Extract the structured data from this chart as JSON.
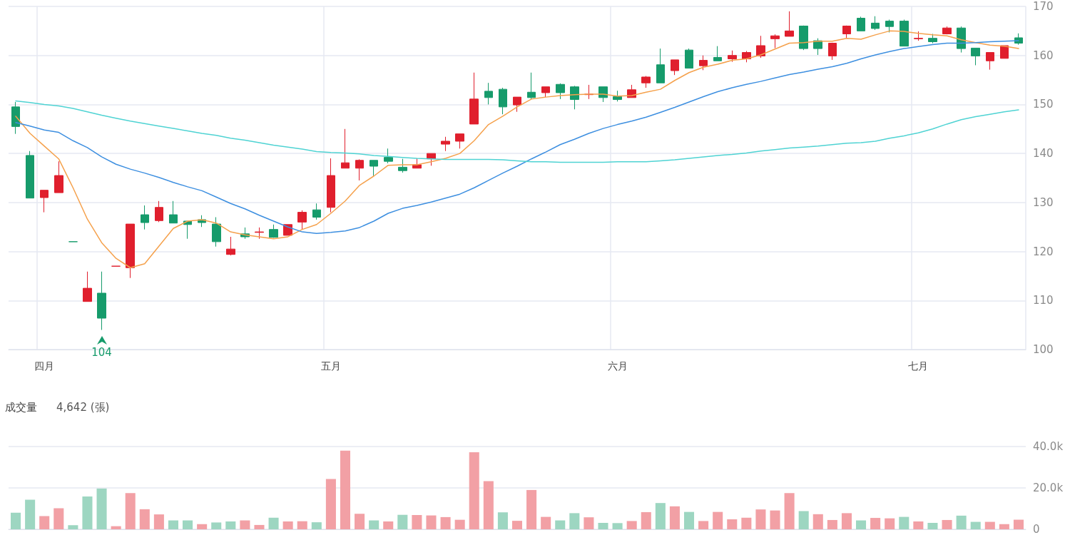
{
  "chart_data": [
    {
      "type": "candlestick",
      "categories": [
        null,
        null,
        "四月",
        null,
        null,
        null,
        null,
        null,
        null,
        null,
        null,
        null,
        null,
        null,
        null,
        null,
        null,
        null,
        null,
        null,
        null,
        null,
        "五月",
        null,
        null,
        null,
        null,
        null,
        null,
        null,
        null,
        null,
        null,
        null,
        null,
        null,
        null,
        null,
        null,
        null,
        null,
        null,
        "六月",
        null,
        null,
        null,
        null,
        null,
        null,
        null,
        null,
        null,
        null,
        null,
        null,
        null,
        null,
        null,
        null,
        null,
        null,
        null,
        null,
        "七月",
        null,
        null,
        null,
        null,
        null,
        null,
        null
      ],
      "ohlc": [
        [
          149.5,
          150.5,
          144,
          145.5
        ],
        [
          139.6,
          140.5,
          130.9,
          130.9
        ],
        [
          131,
          132.5,
          128,
          132.5
        ],
        [
          132,
          138.4,
          132,
          135.5
        ],
        [
          122,
          122,
          122,
          122
        ],
        [
          109.8,
          115.9,
          109.8,
          112.5
        ],
        [
          111.5,
          115.9,
          104,
          106.4
        ],
        [
          117,
          117,
          117,
          117
        ],
        [
          116.7,
          125.6,
          114.6,
          125.6
        ],
        [
          127.5,
          129.4,
          124.5,
          125.9
        ],
        [
          126.3,
          130.3,
          126,
          129
        ],
        [
          127.5,
          130.3,
          125.8,
          125.8
        ],
        [
          126.2,
          126.2,
          122.6,
          125.5
        ],
        [
          126.5,
          127.4,
          125,
          125.9
        ],
        [
          125.6,
          127,
          121,
          122
        ],
        [
          119.4,
          123,
          119.2,
          120.5
        ],
        [
          123.6,
          124.9,
          122.6,
          123
        ],
        [
          123.9,
          124.9,
          122.6,
          124
        ],
        [
          124.5,
          125.5,
          122.8,
          122.9
        ],
        [
          123.3,
          125.5,
          123.3,
          125.5
        ],
        [
          126,
          128.4,
          124.5,
          128
        ],
        [
          128.5,
          129.8,
          126.5,
          127
        ],
        [
          129,
          139,
          128,
          135.5
        ],
        [
          137,
          145,
          137,
          138.1
        ],
        [
          137,
          138.8,
          134.5,
          138.6
        ],
        [
          138.6,
          138.6,
          135.4,
          137.4
        ],
        [
          139.2,
          141,
          138,
          138.4
        ],
        [
          137.2,
          138.9,
          136.1,
          136.5
        ],
        [
          137,
          139,
          137,
          137.7
        ],
        [
          138.9,
          140,
          137.5,
          140
        ],
        [
          141.9,
          143.4,
          140.5,
          142.5
        ],
        [
          142.5,
          144,
          141,
          144
        ],
        [
          146,
          156.5,
          146,
          151.1
        ],
        [
          152.7,
          154.4,
          150,
          151.4
        ],
        [
          153.1,
          153.4,
          148,
          149.5
        ],
        [
          149.9,
          151.5,
          148.5,
          151.5
        ],
        [
          152.5,
          156.5,
          151,
          151.4
        ],
        [
          152.4,
          153.6,
          151.5,
          153.6
        ],
        [
          154.1,
          154.3,
          151.1,
          152.4
        ],
        [
          153.6,
          153.8,
          149,
          151
        ],
        [
          152,
          154,
          151.1,
          152.1
        ],
        [
          153.6,
          153.6,
          150.5,
          151.4
        ],
        [
          151.6,
          152.8,
          150.6,
          151
        ],
        [
          151.4,
          154,
          151.4,
          153
        ],
        [
          154.4,
          155.8,
          153.4,
          155.6
        ],
        [
          158.1,
          161.4,
          154.4,
          154.4
        ],
        [
          156.9,
          159.1,
          156,
          159.1
        ],
        [
          161.1,
          161.4,
          157.4,
          157.4
        ],
        [
          157.9,
          160,
          157,
          159
        ],
        [
          159.6,
          161.9,
          158.9,
          158.9
        ],
        [
          159.3,
          161,
          158.7,
          160
        ],
        [
          159.3,
          160.9,
          158.6,
          160.6
        ],
        [
          159.9,
          164,
          159.5,
          162
        ],
        [
          163.4,
          164.3,
          161.5,
          164
        ],
        [
          163.9,
          169,
          163.9,
          165
        ],
        [
          166,
          166.1,
          161.1,
          161.4
        ],
        [
          163,
          163.5,
          160.1,
          161.4
        ],
        [
          159.9,
          162.6,
          159.1,
          162.5
        ],
        [
          164.4,
          166.1,
          163.6,
          166
        ],
        [
          167.6,
          167.9,
          165,
          165
        ],
        [
          166.6,
          168,
          165.2,
          165.5
        ],
        [
          167,
          167.3,
          164.7,
          165.9
        ],
        [
          167,
          167.3,
          161.9,
          161.9
        ],
        [
          163.4,
          164.9,
          163,
          163.5
        ],
        [
          163.5,
          164.4,
          162.5,
          162.8
        ],
        [
          164.4,
          165.9,
          164.3,
          165.6
        ],
        [
          165.6,
          165.9,
          160.6,
          161.4
        ],
        [
          161.5,
          161.5,
          158,
          159.9
        ],
        [
          158.9,
          160.6,
          157.1,
          160.6
        ],
        [
          159.4,
          162,
          159.4,
          162
        ],
        [
          163.6,
          164.5,
          162.2,
          162.5
        ]
      ],
      "colors": [
        "#169b6b",
        "#169b6b",
        "#e01f2d",
        "#e01f2d",
        "#169b6b",
        "#e01f2d",
        "#169b6b",
        "#e01f2d",
        "#e01f2d",
        "#169b6b",
        "#e01f2d",
        "#169b6b",
        "#169b6b",
        "#169b6b",
        "#169b6b",
        "#e01f2d",
        "#169b6b",
        "#e01f2d",
        "#169b6b",
        "#e01f2d",
        "#e01f2d",
        "#169b6b",
        "#e01f2d",
        "#e01f2d",
        "#e01f2d",
        "#169b6b",
        "#169b6b",
        "#169b6b",
        "#e01f2d",
        "#e01f2d",
        "#e01f2d",
        "#e01f2d",
        "#e01f2d",
        "#169b6b",
        "#169b6b",
        "#e01f2d",
        "#169b6b",
        "#e01f2d",
        "#169b6b",
        "#169b6b",
        "#e01f2d",
        "#169b6b",
        "#169b6b",
        "#e01f2d",
        "#e01f2d",
        "#169b6b",
        "#e01f2d",
        "#169b6b",
        "#e01f2d",
        "#169b6b",
        "#e01f2d",
        "#e01f2d",
        "#e01f2d",
        "#e01f2d",
        "#e01f2d",
        "#169b6b",
        "#169b6b",
        "#e01f2d",
        "#e01f2d",
        "#169b6b",
        "#169b6b",
        "#169b6b",
        "#169b6b",
        "#e01f2d",
        "#169b6b",
        "#e01f2d",
        "#169b6b",
        "#169b6b",
        "#e01f2d",
        "#e01f2d",
        "#169b6b"
      ],
      "series": [
        {
          "type": "line",
          "color": "#f5a14c",
          "values": [
            147.6,
            144.1,
            141.5,
            138.9,
            133,
            126.6,
            121.8,
            118.6,
            116.7,
            117.5,
            121.1,
            124.7,
            126.2,
            126.5,
            125.8,
            124,
            123.4,
            123,
            122.6,
            123,
            124.5,
            125.5,
            127.8,
            130.3,
            133.5,
            135.4,
            137.6,
            137.7,
            137.7,
            138.3,
            139,
            140,
            142.6,
            145.9,
            147.6,
            149.5,
            151.1,
            151.5,
            151.8,
            152,
            152.1,
            152.1,
            151.7,
            151.8,
            152.5,
            153.1,
            154.9,
            156.5,
            157.6,
            158.2,
            159,
            159.3,
            160.1,
            161.3,
            162.5,
            162.6,
            162.9,
            162.9,
            163.5,
            163.3,
            164.2,
            165,
            164.9,
            164.5,
            164.2,
            164,
            163.2,
            162.6,
            162.1,
            161.9,
            161.4
          ]
        },
        {
          "type": "line",
          "color": "#3d8fe0",
          "values": [
            146.3,
            145.6,
            144.8,
            144.3,
            142.6,
            141.2,
            139.3,
            137.8,
            136.8,
            136,
            135.1,
            134.1,
            133.2,
            132.4,
            131.1,
            129.8,
            128.7,
            127.4,
            126.2,
            125,
            124,
            123.7,
            123.9,
            124.2,
            124.9,
            126.2,
            127.8,
            128.8,
            129.4,
            130.1,
            130.9,
            131.7,
            133,
            134.5,
            136,
            137.4,
            138.9,
            140.3,
            141.8,
            142.9,
            144.1,
            145.1,
            145.9,
            146.6,
            147.4,
            148.4,
            149.4,
            150.5,
            151.6,
            152.6,
            153.4,
            154.1,
            154.7,
            155.4,
            156.1,
            156.6,
            157.2,
            157.7,
            158.4,
            159.3,
            160.1,
            160.8,
            161.4,
            161.8,
            162.2,
            162.5,
            162.5,
            162.6,
            162.8,
            162.9,
            163
          ]
        },
        {
          "type": "line",
          "color": "#4fd3d3",
          "values": [
            150.7,
            150.4,
            150,
            149.7,
            149.2,
            148.5,
            147.8,
            147.2,
            146.6,
            146.1,
            145.6,
            145.1,
            144.6,
            144.1,
            143.7,
            143.1,
            142.7,
            142.2,
            141.7,
            141.3,
            140.9,
            140.4,
            140.2,
            140.1,
            139.9,
            139.6,
            139.4,
            139.2,
            139,
            138.9,
            138.8,
            138.8,
            138.8,
            138.8,
            138.7,
            138.5,
            138.3,
            138.3,
            138.2,
            138.2,
            138.2,
            138.2,
            138.3,
            138.3,
            138.3,
            138.5,
            138.7,
            139,
            139.3,
            139.6,
            139.8,
            140.1,
            140.5,
            140.8,
            141.1,
            141.3,
            141.5,
            141.8,
            142.1,
            142.2,
            142.5,
            143.1,
            143.6,
            144.2,
            145,
            146,
            146.9,
            147.5,
            148,
            148.5,
            148.9
          ]
        }
      ],
      "annotations": [
        {
          "text": "104",
          "y": 104
        }
      ],
      "ylim": [
        100,
        170
      ],
      "yticks": [
        100,
        110,
        120,
        130,
        140,
        150,
        160,
        170
      ],
      "grid": true,
      "marker": "none",
      "line_style": "solid"
    },
    {
      "type": "bar",
      "title": "成交量",
      "subtitle": "4,642 (張)",
      "categories": [
        null,
        null,
        null,
        null,
        null,
        null,
        null,
        null,
        null,
        null,
        null,
        null,
        null,
        null,
        null,
        null,
        null,
        null,
        null,
        null,
        null,
        null,
        null,
        null,
        null,
        null,
        null,
        null,
        null,
        null,
        null,
        null,
        null,
        null,
        null,
        null,
        null,
        null,
        null,
        null,
        null,
        null,
        null,
        null,
        null,
        null,
        null,
        null,
        null,
        null,
        null,
        null,
        null,
        null,
        null,
        null,
        null,
        null,
        null,
        null,
        null,
        null,
        null,
        null,
        null,
        null,
        null,
        null,
        null,
        null,
        null
      ],
      "values": [
        8000,
        14300,
        6400,
        10200,
        2000,
        15900,
        19700,
        1500,
        17500,
        9700,
        7200,
        4300,
        4300,
        2500,
        3300,
        3800,
        4300,
        2100,
        5600,
        3800,
        3900,
        3400,
        24300,
        38000,
        7500,
        4300,
        3800,
        7000,
        6900,
        6700,
        5900,
        4600,
        37200,
        23300,
        8200,
        4100,
        19000,
        6000,
        4300,
        7800,
        5800,
        3100,
        3000,
        4000,
        8300,
        12700,
        11100,
        8400,
        4000,
        8400,
        4800,
        5600,
        9600,
        9100,
        17500,
        8800,
        7300,
        4500,
        7800,
        4300,
        5500,
        5300,
        6000,
        3800,
        3100,
        4500,
        6600,
        3600,
        3600,
        2500,
        4642
      ],
      "colors": [
        "#9dd6c1",
        "#9dd6c1",
        "#f2a0a5",
        "#f2a0a5",
        "#9dd6c1",
        "#9dd6c1",
        "#9dd6c1",
        "#f2a0a5",
        "#f2a0a5",
        "#f2a0a5",
        "#f2a0a5",
        "#9dd6c1",
        "#9dd6c1",
        "#f2a0a5",
        "#9dd6c1",
        "#9dd6c1",
        "#f2a0a5",
        "#f2a0a5",
        "#9dd6c1",
        "#f2a0a5",
        "#f2a0a5",
        "#9dd6c1",
        "#f2a0a5",
        "#f2a0a5",
        "#f2a0a5",
        "#9dd6c1",
        "#f2a0a5",
        "#9dd6c1",
        "#f2a0a5",
        "#f2a0a5",
        "#f2a0a5",
        "#f2a0a5",
        "#f2a0a5",
        "#f2a0a5",
        "#9dd6c1",
        "#f2a0a5",
        "#f2a0a5",
        "#f2a0a5",
        "#9dd6c1",
        "#9dd6c1",
        "#f2a0a5",
        "#9dd6c1",
        "#9dd6c1",
        "#f2a0a5",
        "#f2a0a5",
        "#9dd6c1",
        "#f2a0a5",
        "#9dd6c1",
        "#f2a0a5",
        "#f2a0a5",
        "#f2a0a5",
        "#f2a0a5",
        "#f2a0a5",
        "#f2a0a5",
        "#f2a0a5",
        "#9dd6c1",
        "#f2a0a5",
        "#f2a0a5",
        "#f2a0a5",
        "#9dd6c1",
        "#f2a0a5",
        "#f2a0a5",
        "#9dd6c1",
        "#f2a0a5",
        "#9dd6c1",
        "#f2a0a5",
        "#9dd6c1",
        "#9dd6c1",
        "#f2a0a5",
        "#f2a0a5",
        "#f2a0a5"
      ],
      "ylim": [
        0,
        40000
      ],
      "yticks": [
        {
          "value": 0,
          "label": "0"
        },
        {
          "value": 20000,
          "label": "20.0k"
        },
        {
          "value": 40000,
          "label": "40.0k"
        }
      ],
      "grid": "y",
      "tick_labels": "y"
    }
  ]
}
